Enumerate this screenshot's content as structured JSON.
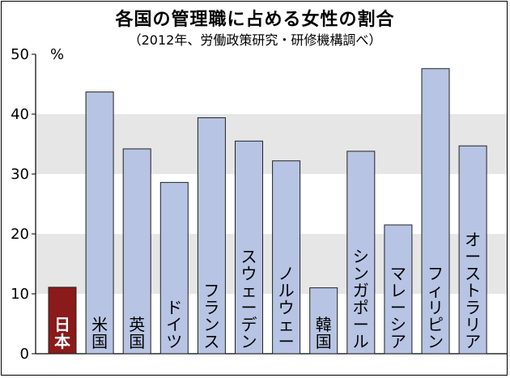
{
  "chart_data": {
    "type": "bar",
    "title": "各国の管理職に占める女性の割合",
    "subtitle": "（2012年、労働政策研究・研修機構調べ）",
    "ylabel": "%",
    "ylim": [
      0,
      50
    ],
    "yticks": [
      0,
      10,
      20,
      30,
      40,
      50
    ],
    "grid": "alternating bands",
    "categories": [
      "日本",
      "米国",
      "英国",
      "ドイツ",
      "フランス",
      "スウェーデン",
      "ノルウェー",
      "韓国",
      "シンガポール",
      "マレーシア",
      "フィリピン",
      "オーストラリア"
    ],
    "values": [
      11.1,
      43.7,
      34.2,
      28.6,
      39.4,
      35.5,
      32.2,
      11.0,
      33.8,
      21.5,
      47.6,
      34.7
    ],
    "colors": {
      "highlight": "#8b1a1a",
      "bar": "#b7c4e3",
      "band": "#e6e6e6",
      "background": "#ffffff"
    }
  }
}
